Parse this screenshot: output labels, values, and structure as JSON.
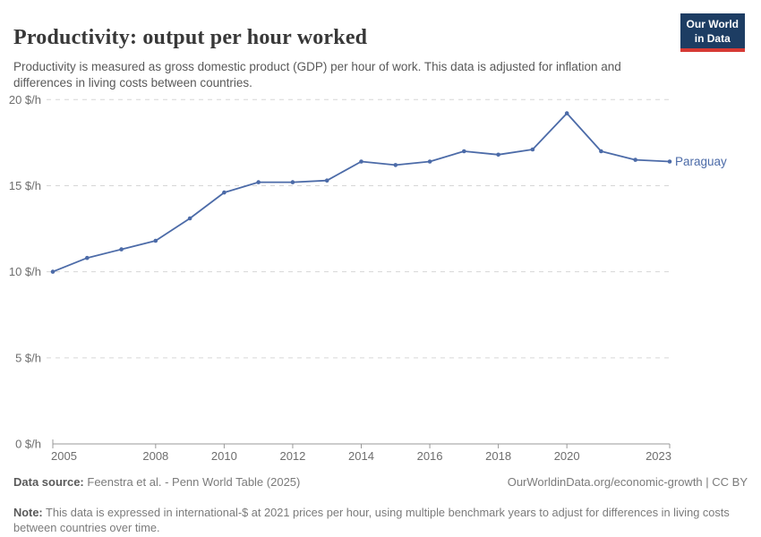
{
  "header": {
    "title": "Productivity: output per hour worked",
    "subtitle": "Productivity is measured as gross domestic product (GDP) per hour of work. This data is adjusted for inflation and differences in living costs between countries.",
    "logo": {
      "line1": "Our World",
      "line2": "in Data",
      "bg_color": "#1d3d63",
      "accent_color": "#d73a34"
    }
  },
  "chart_data": {
    "type": "line",
    "title": "Productivity: output per hour worked",
    "unit": "$/h",
    "x": [
      2005,
      2006,
      2007,
      2008,
      2009,
      2010,
      2011,
      2012,
      2013,
      2014,
      2015,
      2016,
      2017,
      2018,
      2019,
      2020,
      2021,
      2022,
      2023
    ],
    "series": [
      {
        "name": "Paraguay",
        "color": "#4c6ba8",
        "values": [
          10.0,
          10.8,
          11.3,
          11.8,
          13.1,
          14.6,
          15.2,
          15.2,
          15.3,
          16.4,
          16.2,
          16.4,
          17.0,
          16.8,
          17.1,
          19.2,
          17.0,
          16.5,
          16.4
        ]
      }
    ],
    "xlabel": "",
    "ylabel": "$/h",
    "ylim": [
      0,
      20
    ],
    "yticks": [
      0,
      5,
      10,
      15,
      20
    ],
    "ytick_labels": [
      "0 $/h",
      "5 $/h",
      "10 $/h",
      "15 $/h",
      "20 $/h"
    ],
    "xticks": [
      2005,
      2008,
      2010,
      2012,
      2014,
      2016,
      2018,
      2020,
      2023
    ],
    "grid": "horizontal-dashed",
    "grid_color": "#d6d6d6",
    "axis_color": "#999999",
    "tick_label_color": "#6e6e6e",
    "legend": "line-end-label"
  },
  "footer": {
    "source_label": "Data source:",
    "source_value": "Feenstra et al. - Penn World Table (2025)",
    "owid_link": "OurWorldinData.org/economic-growth | CC BY",
    "note_label": "Note:",
    "note_value": "This data is expressed in international-$ at 2021 prices per hour, using multiple benchmark years to adjust for differences in living costs between countries over time."
  }
}
